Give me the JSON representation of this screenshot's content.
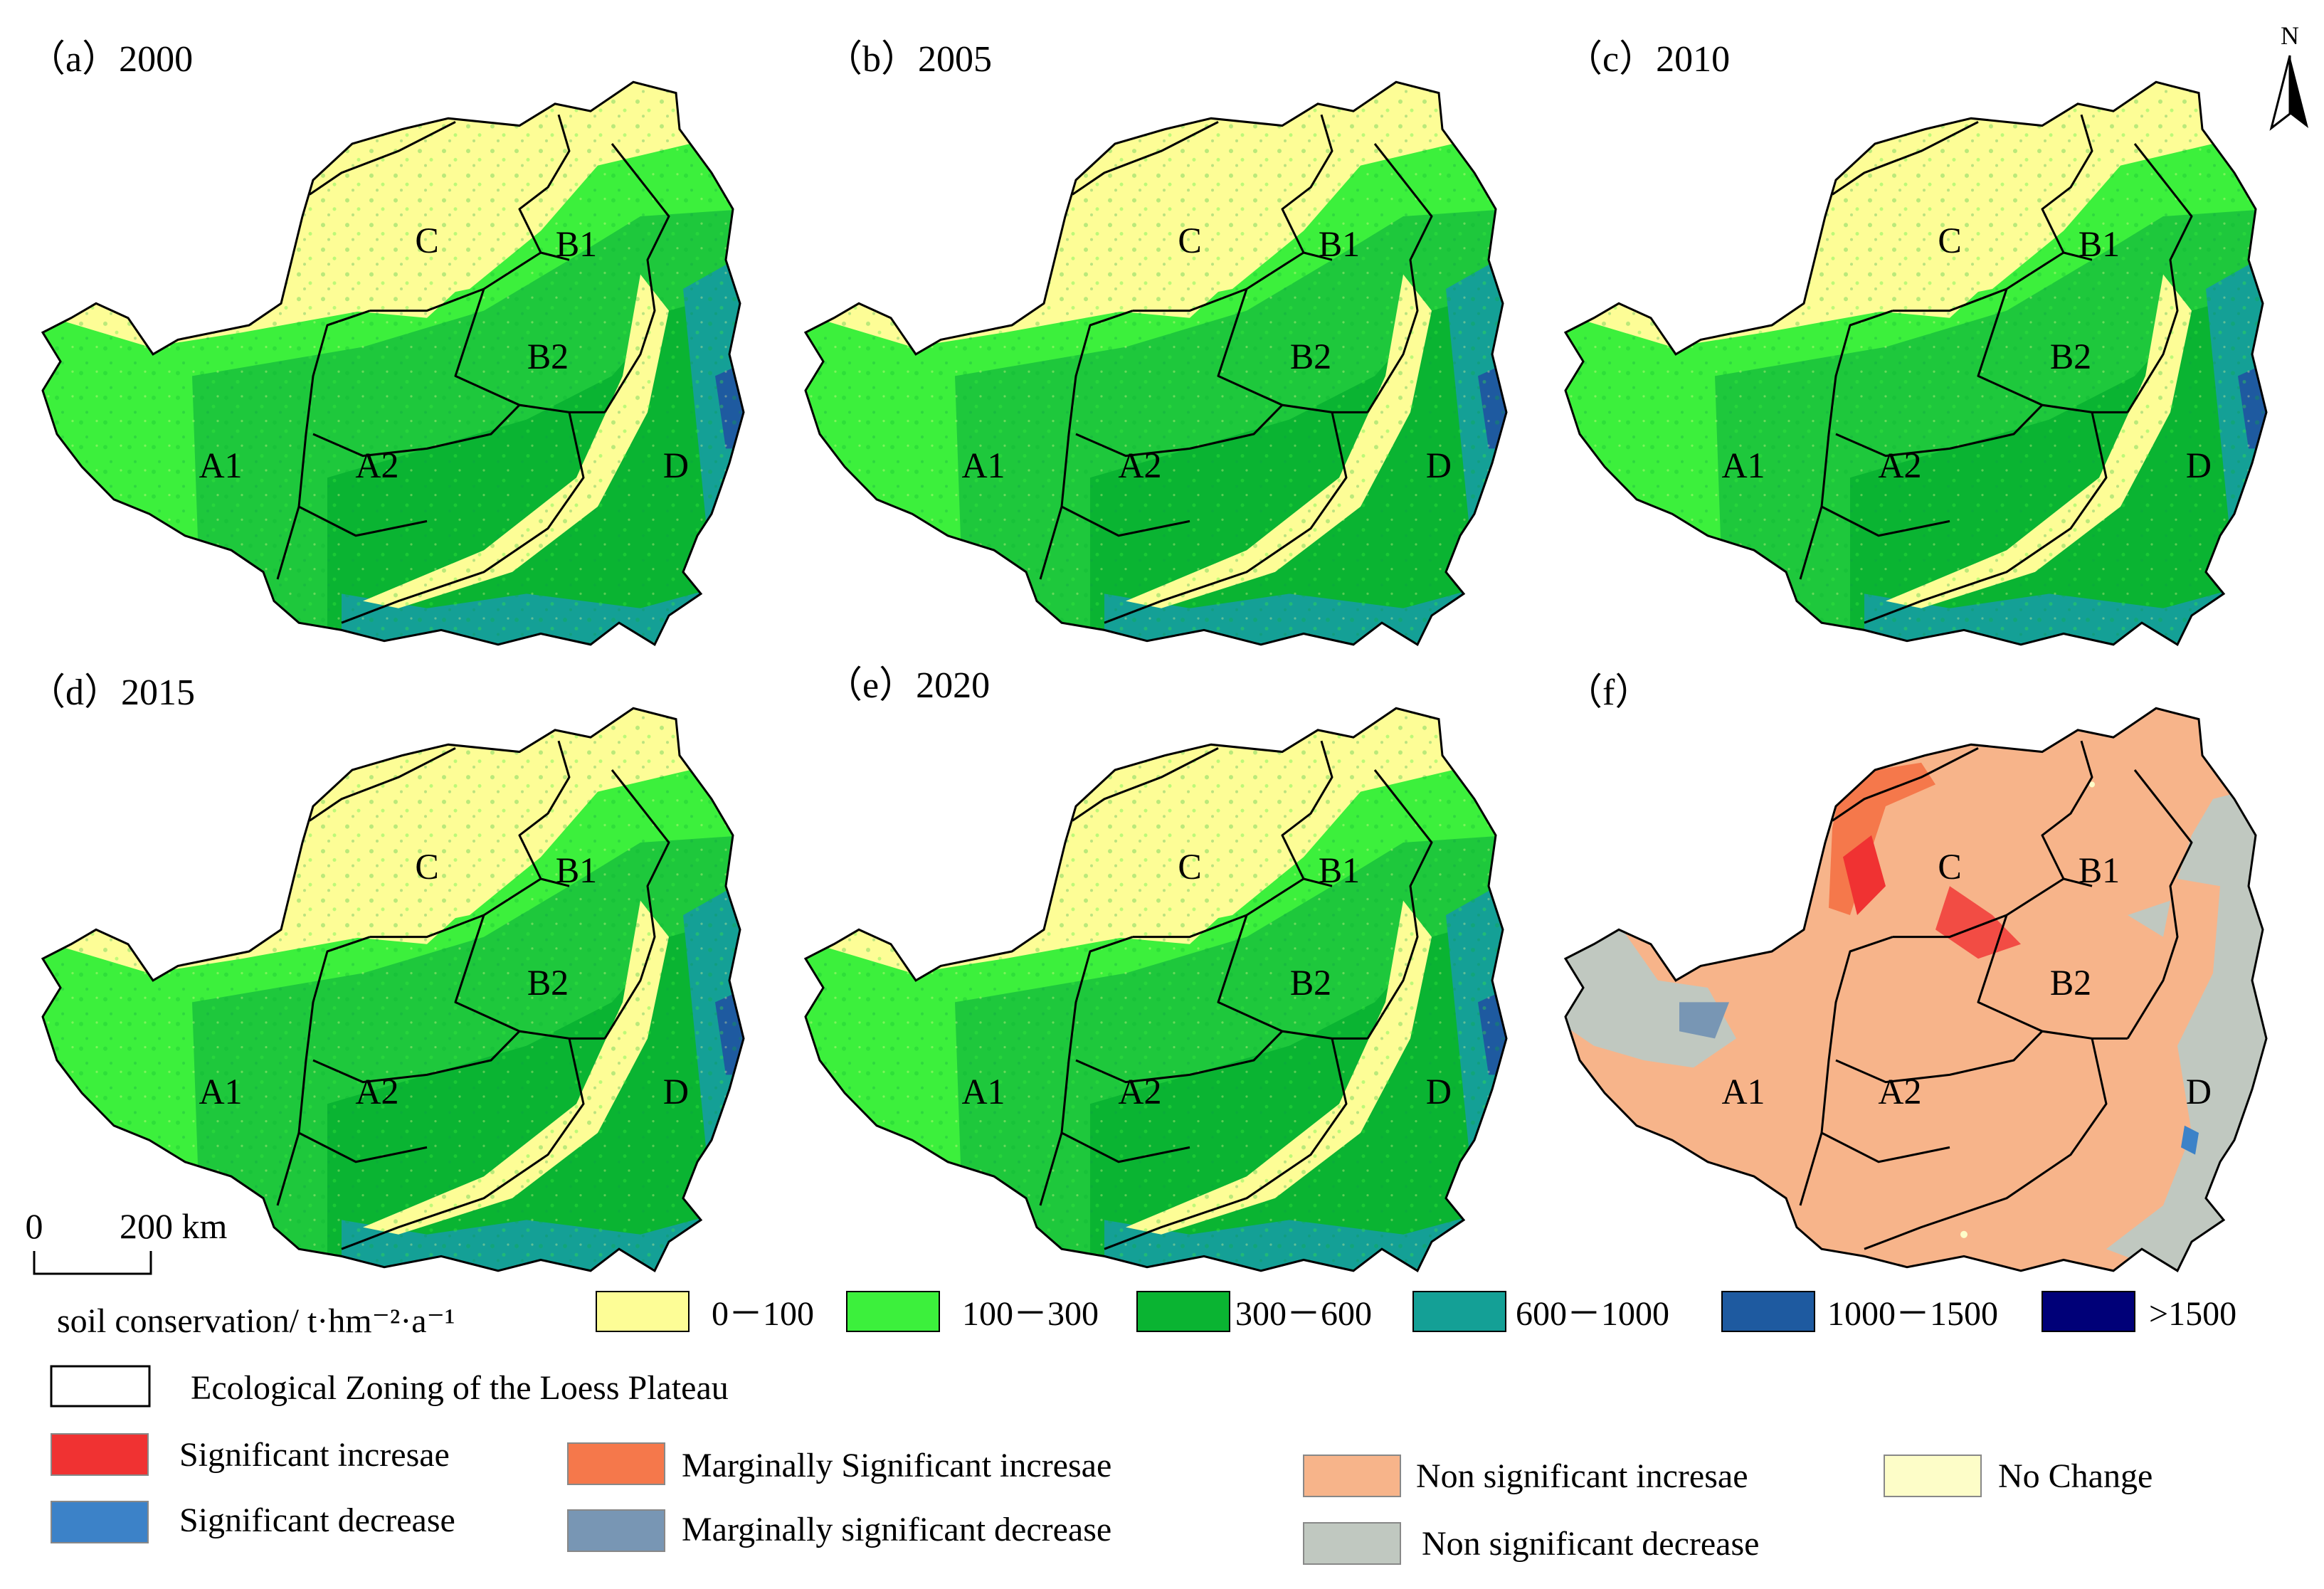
{
  "panels": [
    {
      "title": "（a）2000",
      "mode": "sc"
    },
    {
      "title": "（b）2005",
      "mode": "sc"
    },
    {
      "title": "（c）2010",
      "mode": "sc"
    },
    {
      "title": "（d）2015",
      "mode": "sc"
    },
    {
      "title": "（e）2020",
      "mode": "sc"
    },
    {
      "title": "（f）",
      "mode": "trend"
    }
  ],
  "zones": [
    "C",
    "B1",
    "B2",
    "A1",
    "A2",
    "D"
  ],
  "north_arrow": {
    "label": "N",
    "icon": "north-arrow-icon"
  },
  "scale_bar": {
    "zero": "0",
    "distance": "200 km"
  },
  "soil_legend": {
    "title": "soil conservation/ t·hm⁻²·a⁻¹",
    "classes": [
      {
        "label": "0－100",
        "color": "#fdfd96"
      },
      {
        "label": "100－300",
        "color": "#3cf03c"
      },
      {
        "label": "300－600",
        "color": "#0ab432"
      },
      {
        "label": "600－1000",
        "color": "#14a096"
      },
      {
        "label": "1000－1500",
        "color": "#1e5aa0"
      },
      {
        "label": ">1500",
        "color": "#000078"
      }
    ]
  },
  "zoning_legend": {
    "label": "Ecological Zoning of the Loess Plateau"
  },
  "trend_legend": [
    {
      "label": "Significant incresae",
      "color": "#f03232"
    },
    {
      "label": "Marginally Significant incresae",
      "color": "#f5784b"
    },
    {
      "label": "Non significant incresae",
      "color": "#f7b48a"
    },
    {
      "label": "No Change",
      "color": "#fdfdc8"
    },
    {
      "label": "Significant decrease",
      "color": "#3c82c8"
    },
    {
      "label": "Marginally significant decrease",
      "color": "#7896b4"
    },
    {
      "label": "Non significant decrease",
      "color": "#c0c8c0"
    }
  ]
}
